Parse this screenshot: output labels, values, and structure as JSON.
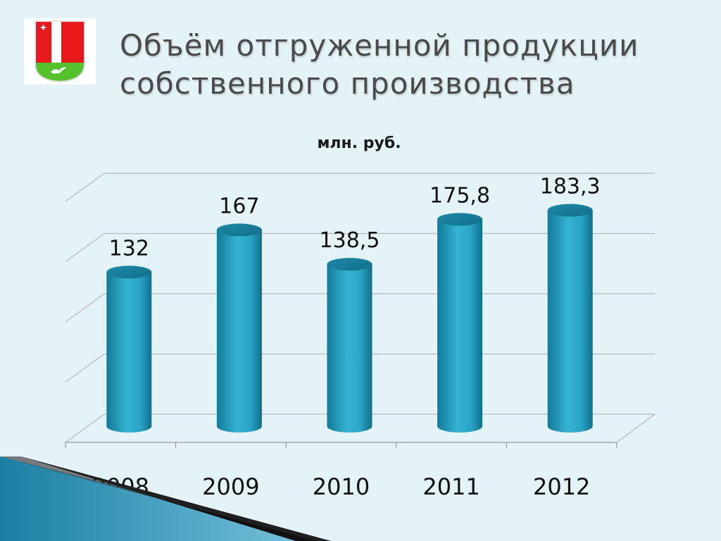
{
  "title_lines": [
    "Объём отгруженной продукции",
    "собственного производства"
  ],
  "colors": {
    "background": "#e4f3f8",
    "bar": "#2aa3c4",
    "bar_dark": "#137a98",
    "grid": "#b8b8b8",
    "emblem_red": "#e8191b",
    "emblem_green": "#55c12d"
  },
  "chart_data": {
    "type": "bar",
    "title": "",
    "unit_label": "млн. руб.",
    "categories": [
      "2008",
      "2009",
      "2010",
      "2011",
      "2012"
    ],
    "values": [
      132,
      167,
      138.5,
      175.8,
      183.3
    ],
    "value_labels": [
      "132",
      "167",
      "138,5",
      "175,8",
      "183,3"
    ],
    "ylim": [
      0,
      200
    ],
    "grid": true,
    "legend": "none"
  }
}
